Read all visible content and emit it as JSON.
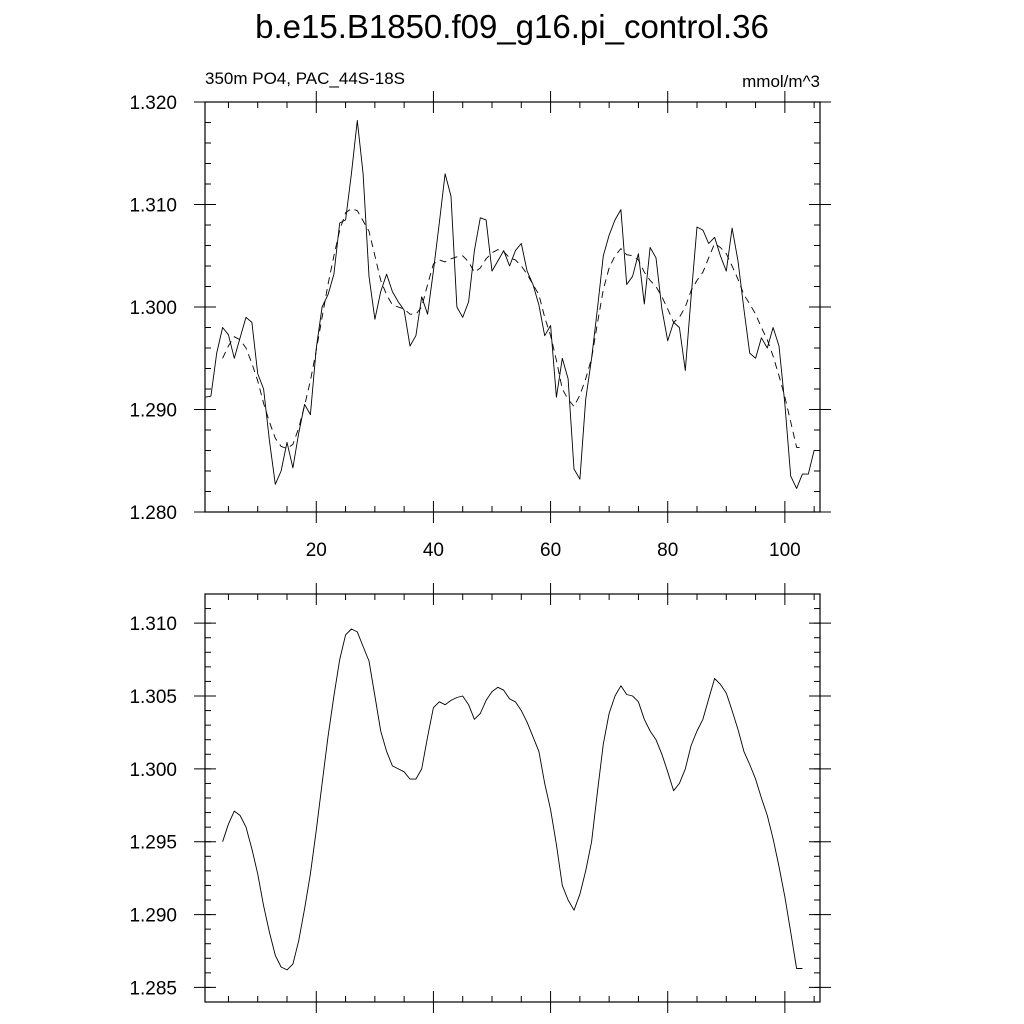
{
  "title": "b.e15.B1850.f09_g16.pi_control.36",
  "chart_data": [
    {
      "type": "line",
      "left_string": "350m PO4, PAC_44S-18S",
      "right_string": "mmol/m^3",
      "xlim": [
        1,
        106
      ],
      "ylim": [
        1.28,
        1.32
      ],
      "xticks": [
        20,
        40,
        60,
        80,
        100
      ],
      "xtick_labels": [
        "20",
        "40",
        "60",
        "80",
        "100"
      ],
      "yticks": [
        1.28,
        1.29,
        1.3,
        1.31,
        1.32
      ],
      "ytick_labels": [
        "1.280",
        "1.290",
        "1.300",
        "1.310",
        "1.320"
      ],
      "series": [
        {
          "style": "solid",
          "x": [
            1,
            2,
            3,
            4,
            5,
            6,
            7,
            8,
            9,
            10,
            11,
            12,
            13,
            14,
            15,
            16,
            17,
            18,
            19,
            20,
            21,
            22,
            23,
            24,
            25,
            26,
            27,
            28,
            29,
            30,
            31,
            32,
            33,
            34,
            35,
            36,
            37,
            38,
            39,
            40,
            41,
            42,
            43,
            44,
            45,
            46,
            47,
            48,
            49,
            50,
            51,
            52,
            53,
            54,
            55,
            56,
            57,
            58,
            59,
            60,
            61,
            62,
            63,
            64,
            65,
            66,
            67,
            68,
            69,
            70,
            71,
            72,
            73,
            74,
            75,
            76,
            77,
            78,
            79,
            80,
            81,
            82,
            83,
            84,
            85,
            86,
            87,
            88,
            89,
            90,
            91,
            92,
            93,
            94,
            95,
            96,
            97,
            98,
            99,
            100,
            101,
            102,
            103,
            104,
            105,
            106
          ],
          "y": [
            1.2912,
            1.2913,
            1.2955,
            1.298,
            1.2973,
            1.295,
            1.297,
            1.299,
            1.2985,
            1.2935,
            1.292,
            1.287,
            1.2827,
            1.284,
            1.2868,
            1.2843,
            1.2877,
            1.2905,
            1.2895,
            1.296,
            1.3,
            1.3012,
            1.3032,
            1.3082,
            1.3085,
            1.313,
            1.3182,
            1.313,
            1.303,
            1.2988,
            1.3015,
            1.3032,
            1.3015,
            1.3005,
            1.2997,
            1.2962,
            1.2972,
            1.301,
            1.2993,
            1.3035,
            1.3082,
            1.313,
            1.3108,
            1.3,
            1.299,
            1.3005,
            1.3055,
            1.3087,
            1.3085,
            1.3035,
            1.3045,
            1.3055,
            1.304,
            1.3055,
            1.3062,
            1.3035,
            1.3022,
            1.3002,
            1.2972,
            1.2982,
            1.2912,
            1.295,
            1.293,
            1.2842,
            1.2832,
            1.291,
            1.295,
            1.2998,
            1.305,
            1.307,
            1.3085,
            1.3095,
            1.3022,
            1.303,
            1.3052,
            1.3003,
            1.3058,
            1.3048,
            1.2998,
            1.2967,
            1.2985,
            1.298,
            1.2938,
            1.301,
            1.3078,
            1.3075,
            1.3062,
            1.3068,
            1.305,
            1.3035,
            1.3077,
            1.3045,
            1.2998,
            1.2955,
            1.295,
            1.297,
            1.296,
            1.298,
            1.2962,
            1.2905,
            1.2835,
            1.2823,
            1.2837,
            1.2837,
            1.286,
            1.286
          ]
        },
        {
          "style": "dashed",
          "x": [
            4,
            5,
            6,
            7,
            8,
            9,
            10,
            11,
            12,
            13,
            14,
            15,
            16,
            17,
            18,
            19,
            20,
            21,
            22,
            23,
            24,
            25,
            26,
            27,
            28,
            29,
            30,
            31,
            32,
            33,
            34,
            35,
            36,
            37,
            38,
            39,
            40,
            41,
            42,
            43,
            44,
            45,
            46,
            47,
            48,
            49,
            50,
            51,
            52,
            53,
            54,
            55,
            56,
            57,
            58,
            59,
            60,
            61,
            62,
            63,
            64,
            65,
            66,
            67,
            68,
            69,
            70,
            71,
            72,
            73,
            74,
            75,
            76,
            77,
            78,
            79,
            80,
            81,
            82,
            83,
            84,
            85,
            86,
            87,
            88,
            89,
            90,
            91,
            92,
            93,
            94,
            95,
            96,
            97,
            98,
            99,
            100,
            101,
            102,
            103
          ],
          "y": [
            1.295,
            1.2962,
            1.2971,
            1.2968,
            1.296,
            1.2945,
            1.2928,
            1.2906,
            1.2888,
            1.2872,
            1.2864,
            1.2862,
            1.2866,
            1.2882,
            1.2904,
            1.2928,
            1.2958,
            1.299,
            1.3022,
            1.305,
            1.3075,
            1.3092,
            1.3096,
            1.3094,
            1.3084,
            1.3074,
            1.305,
            1.3026,
            1.3012,
            1.3002,
            1.3,
            1.2998,
            1.2993,
            1.2993,
            1.3,
            1.3022,
            1.3042,
            1.3046,
            1.3044,
            1.3047,
            1.3049,
            1.305,
            1.3044,
            1.3034,
            1.3038,
            1.3047,
            1.3053,
            1.3056,
            1.3054,
            1.3048,
            1.3046,
            1.304,
            1.3032,
            1.3022,
            1.3012,
            1.299,
            1.2972,
            1.2948,
            1.292,
            1.291,
            1.2903,
            1.2914,
            1.293,
            1.295,
            1.2984,
            1.3017,
            1.3038,
            1.305,
            1.3057,
            1.3051,
            1.305,
            1.3046,
            1.3034,
            1.3026,
            1.302,
            1.301,
            1.2998,
            1.2985,
            1.299,
            1.3,
            1.3016,
            1.3026,
            1.3034,
            1.3048,
            1.3062,
            1.3058,
            1.3052,
            1.304,
            1.3027,
            1.3012,
            1.3003,
            1.2993,
            1.298,
            1.2968,
            1.2952,
            1.2933,
            1.2912,
            1.2888,
            1.2863,
            1.2863
          ]
        }
      ]
    },
    {
      "type": "line",
      "xlim": [
        1,
        106
      ],
      "ylim": [
        1.284,
        1.312
      ],
      "xticks": [
        20,
        40,
        60,
        80,
        100
      ],
      "yticks": [
        1.285,
        1.29,
        1.295,
        1.3,
        1.305,
        1.31
      ],
      "ytick_labels": [
        "1.285",
        "1.290",
        "1.295",
        "1.300",
        "1.305",
        "1.310"
      ],
      "series": [
        {
          "style": "solid",
          "x": [
            4,
            5,
            6,
            7,
            8,
            9,
            10,
            11,
            12,
            13,
            14,
            15,
            16,
            17,
            18,
            19,
            20,
            21,
            22,
            23,
            24,
            25,
            26,
            27,
            28,
            29,
            30,
            31,
            32,
            33,
            34,
            35,
            36,
            37,
            38,
            39,
            40,
            41,
            42,
            43,
            44,
            45,
            46,
            47,
            48,
            49,
            50,
            51,
            52,
            53,
            54,
            55,
            56,
            57,
            58,
            59,
            60,
            61,
            62,
            63,
            64,
            65,
            66,
            67,
            68,
            69,
            70,
            71,
            72,
            73,
            74,
            75,
            76,
            77,
            78,
            79,
            80,
            81,
            82,
            83,
            84,
            85,
            86,
            87,
            88,
            89,
            90,
            91,
            92,
            93,
            94,
            95,
            96,
            97,
            98,
            99,
            100,
            101,
            102,
            103
          ],
          "y": [
            1.295,
            1.2962,
            1.2971,
            1.2968,
            1.296,
            1.2945,
            1.2928,
            1.2906,
            1.2888,
            1.2872,
            1.2864,
            1.2862,
            1.2866,
            1.2882,
            1.2904,
            1.2928,
            1.2958,
            1.299,
            1.3022,
            1.305,
            1.3075,
            1.3092,
            1.3096,
            1.3094,
            1.3084,
            1.3074,
            1.305,
            1.3026,
            1.3012,
            1.3002,
            1.3,
            1.2998,
            1.2993,
            1.2993,
            1.3,
            1.3022,
            1.3042,
            1.3046,
            1.3044,
            1.3047,
            1.3049,
            1.305,
            1.3044,
            1.3034,
            1.3038,
            1.3047,
            1.3053,
            1.3056,
            1.3054,
            1.3048,
            1.3046,
            1.304,
            1.3032,
            1.3022,
            1.3012,
            1.299,
            1.2972,
            1.2948,
            1.292,
            1.291,
            1.2903,
            1.2914,
            1.293,
            1.295,
            1.2984,
            1.3017,
            1.3038,
            1.305,
            1.3057,
            1.3051,
            1.305,
            1.3046,
            1.3034,
            1.3026,
            1.302,
            1.301,
            1.2998,
            1.2985,
            1.299,
            1.3,
            1.3016,
            1.3026,
            1.3034,
            1.3048,
            1.3062,
            1.3058,
            1.3052,
            1.304,
            1.3027,
            1.3012,
            1.3003,
            1.2993,
            1.298,
            1.2968,
            1.2952,
            1.2933,
            1.2912,
            1.2888,
            1.2863,
            1.2863
          ]
        }
      ]
    }
  ]
}
